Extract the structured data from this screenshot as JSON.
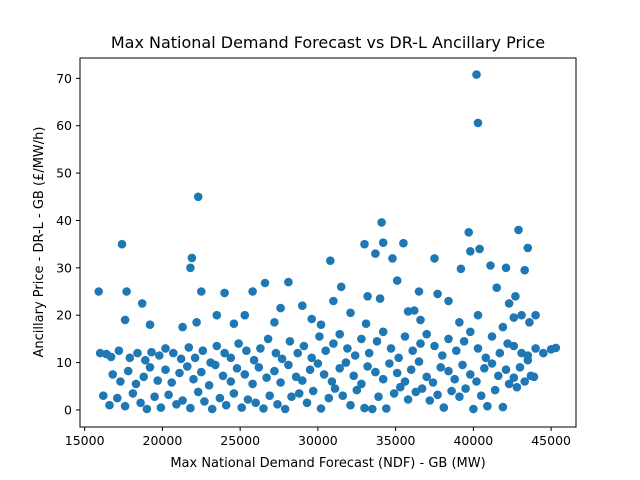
{
  "chart_data": {
    "type": "scatter",
    "title": "Max National Demand Forecast vs DR-L Ancillary Price",
    "xlabel": "Max National Demand Forecast (NDF) - GB (MW)",
    "ylabel": "Ancillary Price - DR-L - GB (£/MW/h)",
    "xlim": [
      14700,
      46600
    ],
    "ylim": [
      -3.6,
      74.3
    ],
    "x_ticks": [
      15000,
      20000,
      25000,
      30000,
      35000,
      40000,
      45000
    ],
    "x_tick_labels": [
      "15000",
      "20000",
      "25000",
      "30000",
      "35000",
      "40000",
      "45000"
    ],
    "y_ticks": [
      0,
      10,
      20,
      30,
      40,
      50,
      60,
      70
    ],
    "y_tick_labels": [
      "0",
      "10",
      "20",
      "30",
      "40",
      "50",
      "60",
      "70"
    ],
    "grid": false,
    "marker_color": "#1f77b4",
    "series": [
      {
        "points": [
          [
            40200,
            70.8
          ],
          [
            40300,
            60.6
          ],
          [
            22300,
            45.0
          ],
          [
            34100,
            39.6
          ],
          [
            42900,
            38.0
          ],
          [
            39700,
            37.5
          ],
          [
            17400,
            35.0
          ],
          [
            33000,
            35.0
          ],
          [
            34200,
            35.3
          ],
          [
            35500,
            35.2
          ],
          [
            43500,
            34.2
          ],
          [
            39800,
            33.5
          ],
          [
            40400,
            34.0
          ],
          [
            42100,
            30.0
          ],
          [
            43300,
            29.5
          ],
          [
            41100,
            30.5
          ],
          [
            21800,
            30.0
          ],
          [
            21900,
            32.1
          ],
          [
            30800,
            31.5
          ],
          [
            34800,
            32.0
          ],
          [
            33700,
            33.0
          ],
          [
            39200,
            29.8
          ],
          [
            37500,
            32.0
          ],
          [
            26600,
            26.8
          ],
          [
            28100,
            27.0
          ],
          [
            35100,
            27.3
          ],
          [
            36500,
            25.0
          ],
          [
            41500,
            25.8
          ],
          [
            42700,
            24.0
          ],
          [
            15900,
            25.0
          ],
          [
            17700,
            25.0
          ],
          [
            22500,
            25.0
          ],
          [
            24000,
            24.7
          ],
          [
            25800,
            25.0
          ],
          [
            31500,
            26.0
          ],
          [
            34000,
            23.5
          ],
          [
            33200,
            24.0
          ],
          [
            37700,
            24.5
          ],
          [
            38400,
            23.0
          ],
          [
            42300,
            22.5
          ],
          [
            18700,
            22.5
          ],
          [
            27600,
            21.5
          ],
          [
            29000,
            22.0
          ],
          [
            31000,
            23.0
          ],
          [
            36200,
            21.0
          ],
          [
            43100,
            20.0
          ],
          [
            44000,
            20.0
          ],
          [
            17600,
            19.0
          ],
          [
            21300,
            17.5
          ],
          [
            23500,
            20.0
          ],
          [
            25300,
            20.0
          ],
          [
            29600,
            19.2
          ],
          [
            32100,
            20.5
          ],
          [
            35800,
            20.8
          ],
          [
            40300,
            20.0
          ],
          [
            42600,
            19.5
          ],
          [
            43600,
            18.5
          ],
          [
            19200,
            18.0
          ],
          [
            22200,
            18.5
          ],
          [
            24600,
            18.2
          ],
          [
            27200,
            18.5
          ],
          [
            30200,
            18.0
          ],
          [
            33100,
            18.2
          ],
          [
            36600,
            19.0
          ],
          [
            39100,
            18.5
          ],
          [
            41900,
            17.5
          ],
          [
            16000,
            12.0
          ],
          [
            16400,
            11.8
          ],
          [
            16700,
            11.2
          ],
          [
            17200,
            12.5
          ],
          [
            17900,
            11.0
          ],
          [
            18400,
            12.0
          ],
          [
            18900,
            10.5
          ],
          [
            19300,
            12.2
          ],
          [
            19800,
            11.5
          ],
          [
            20200,
            13.0
          ],
          [
            20700,
            12.0
          ],
          [
            21200,
            10.8
          ],
          [
            21700,
            13.2
          ],
          [
            22100,
            11.0
          ],
          [
            22600,
            12.5
          ],
          [
            23100,
            10.0
          ],
          [
            23500,
            13.5
          ],
          [
            24000,
            12.0
          ],
          [
            24400,
            11.0
          ],
          [
            24900,
            14.0
          ],
          [
            25400,
            12.5
          ],
          [
            25900,
            10.5
          ],
          [
            26300,
            13.0
          ],
          [
            26800,
            15.0
          ],
          [
            27300,
            12.0
          ],
          [
            27700,
            10.8
          ],
          [
            28200,
            14.5
          ],
          [
            28700,
            12.0
          ],
          [
            29100,
            13.5
          ],
          [
            29600,
            11.0
          ],
          [
            30100,
            15.5
          ],
          [
            30500,
            12.5
          ],
          [
            31000,
            14.0
          ],
          [
            31400,
            16.0
          ],
          [
            31900,
            13.0
          ],
          [
            32400,
            11.5
          ],
          [
            32800,
            15.0
          ],
          [
            33300,
            12.0
          ],
          [
            33800,
            14.5
          ],
          [
            34200,
            16.5
          ],
          [
            34700,
            13.0
          ],
          [
            35200,
            11.0
          ],
          [
            35600,
            15.5
          ],
          [
            36100,
            12.5
          ],
          [
            36600,
            14.0
          ],
          [
            37000,
            16.0
          ],
          [
            37500,
            13.5
          ],
          [
            38000,
            11.5
          ],
          [
            38400,
            15.0
          ],
          [
            38900,
            12.5
          ],
          [
            39400,
            14.5
          ],
          [
            39800,
            16.5
          ],
          [
            40300,
            13.0
          ],
          [
            40800,
            11.0
          ],
          [
            41200,
            15.5
          ],
          [
            41700,
            12.0
          ],
          [
            42200,
            14.0
          ],
          [
            42600,
            13.5
          ],
          [
            43100,
            12.0
          ],
          [
            43500,
            11.5
          ],
          [
            44000,
            13.0
          ],
          [
            44500,
            12.0
          ],
          [
            45000,
            12.8
          ],
          [
            45300,
            13.1
          ],
          [
            16800,
            7.5
          ],
          [
            17300,
            6.0
          ],
          [
            17800,
            8.2
          ],
          [
            18300,
            5.5
          ],
          [
            18800,
            7.0
          ],
          [
            19200,
            9.0
          ],
          [
            19700,
            6.2
          ],
          [
            20200,
            8.5
          ],
          [
            20600,
            5.8
          ],
          [
            21100,
            7.8
          ],
          [
            21600,
            9.2
          ],
          [
            22000,
            6.5
          ],
          [
            22500,
            8.0
          ],
          [
            23000,
            5.2
          ],
          [
            23400,
            9.5
          ],
          [
            23900,
            7.2
          ],
          [
            24400,
            6.0
          ],
          [
            24800,
            8.8
          ],
          [
            25300,
            7.5
          ],
          [
            25800,
            5.5
          ],
          [
            26200,
            9.0
          ],
          [
            26700,
            6.8
          ],
          [
            27200,
            8.2
          ],
          [
            27600,
            5.8
          ],
          [
            28100,
            9.5
          ],
          [
            28600,
            7.0
          ],
          [
            29000,
            6.2
          ],
          [
            29500,
            8.5
          ],
          [
            30000,
            9.8
          ],
          [
            30400,
            7.5
          ],
          [
            30900,
            6.0
          ],
          [
            31400,
            8.8
          ],
          [
            31800,
            10.0
          ],
          [
            32300,
            7.2
          ],
          [
            32800,
            5.5
          ],
          [
            33200,
            9.2
          ],
          [
            33700,
            8.0
          ],
          [
            34200,
            6.5
          ],
          [
            34600,
            9.8
          ],
          [
            35100,
            7.8
          ],
          [
            35600,
            6.0
          ],
          [
            36000,
            8.5
          ],
          [
            36500,
            10.2
          ],
          [
            37000,
            7.0
          ],
          [
            37400,
            5.8
          ],
          [
            37900,
            9.0
          ],
          [
            38400,
            8.2
          ],
          [
            38800,
            6.5
          ],
          [
            39300,
            9.5
          ],
          [
            39800,
            7.5
          ],
          [
            40200,
            6.0
          ],
          [
            40700,
            8.8
          ],
          [
            41200,
            9.8
          ],
          [
            41600,
            7.2
          ],
          [
            42100,
            8.5
          ],
          [
            42600,
            6.8
          ],
          [
            43000,
            9.0
          ],
          [
            43500,
            10.5
          ],
          [
            43900,
            7.0
          ],
          [
            16200,
            3.0
          ],
          [
            16600,
            1.0
          ],
          [
            17100,
            2.5
          ],
          [
            17600,
            0.8
          ],
          [
            18100,
            3.5
          ],
          [
            18600,
            1.5
          ],
          [
            19000,
            0.2
          ],
          [
            19500,
            2.8
          ],
          [
            19900,
            0.5
          ],
          [
            20400,
            3.2
          ],
          [
            20900,
            1.2
          ],
          [
            21300,
            2.0
          ],
          [
            21800,
            0.4
          ],
          [
            22300,
            3.8
          ],
          [
            22700,
            1.8
          ],
          [
            23200,
            0.2
          ],
          [
            23700,
            2.5
          ],
          [
            24100,
            1.0
          ],
          [
            24600,
            3.5
          ],
          [
            25100,
            0.5
          ],
          [
            25500,
            2.2
          ],
          [
            26000,
            1.5
          ],
          [
            26500,
            0.3
          ],
          [
            26900,
            3.0
          ],
          [
            27400,
            1.2
          ],
          [
            27900,
            0.2
          ],
          [
            28300,
            2.8
          ],
          [
            28800,
            3.5
          ],
          [
            29300,
            1.5
          ],
          [
            29700,
            4.0
          ],
          [
            30200,
            0.3
          ],
          [
            30700,
            2.5
          ],
          [
            31100,
            4.5
          ],
          [
            31600,
            3.0
          ],
          [
            32100,
            1.0
          ],
          [
            32500,
            4.2
          ],
          [
            33000,
            0.4
          ],
          [
            33500,
            0.2
          ],
          [
            33900,
            2.8
          ],
          [
            34400,
            0.3
          ],
          [
            34900,
            3.5
          ],
          [
            35300,
            4.8
          ],
          [
            35800,
            2.2
          ],
          [
            36300,
            3.8
          ],
          [
            36700,
            4.5
          ],
          [
            37200,
            2.0
          ],
          [
            37700,
            3.2
          ],
          [
            38100,
            0.5
          ],
          [
            38600,
            4.0
          ],
          [
            39100,
            2.8
          ],
          [
            39500,
            4.5
          ],
          [
            40000,
            0.2
          ],
          [
            40500,
            3.0
          ],
          [
            40900,
            0.8
          ],
          [
            41400,
            4.2
          ],
          [
            41900,
            0.6
          ],
          [
            42300,
            5.5
          ],
          [
            42800,
            4.8
          ],
          [
            43300,
            6.0
          ],
          [
            43700,
            7.2
          ]
        ]
      }
    ]
  }
}
